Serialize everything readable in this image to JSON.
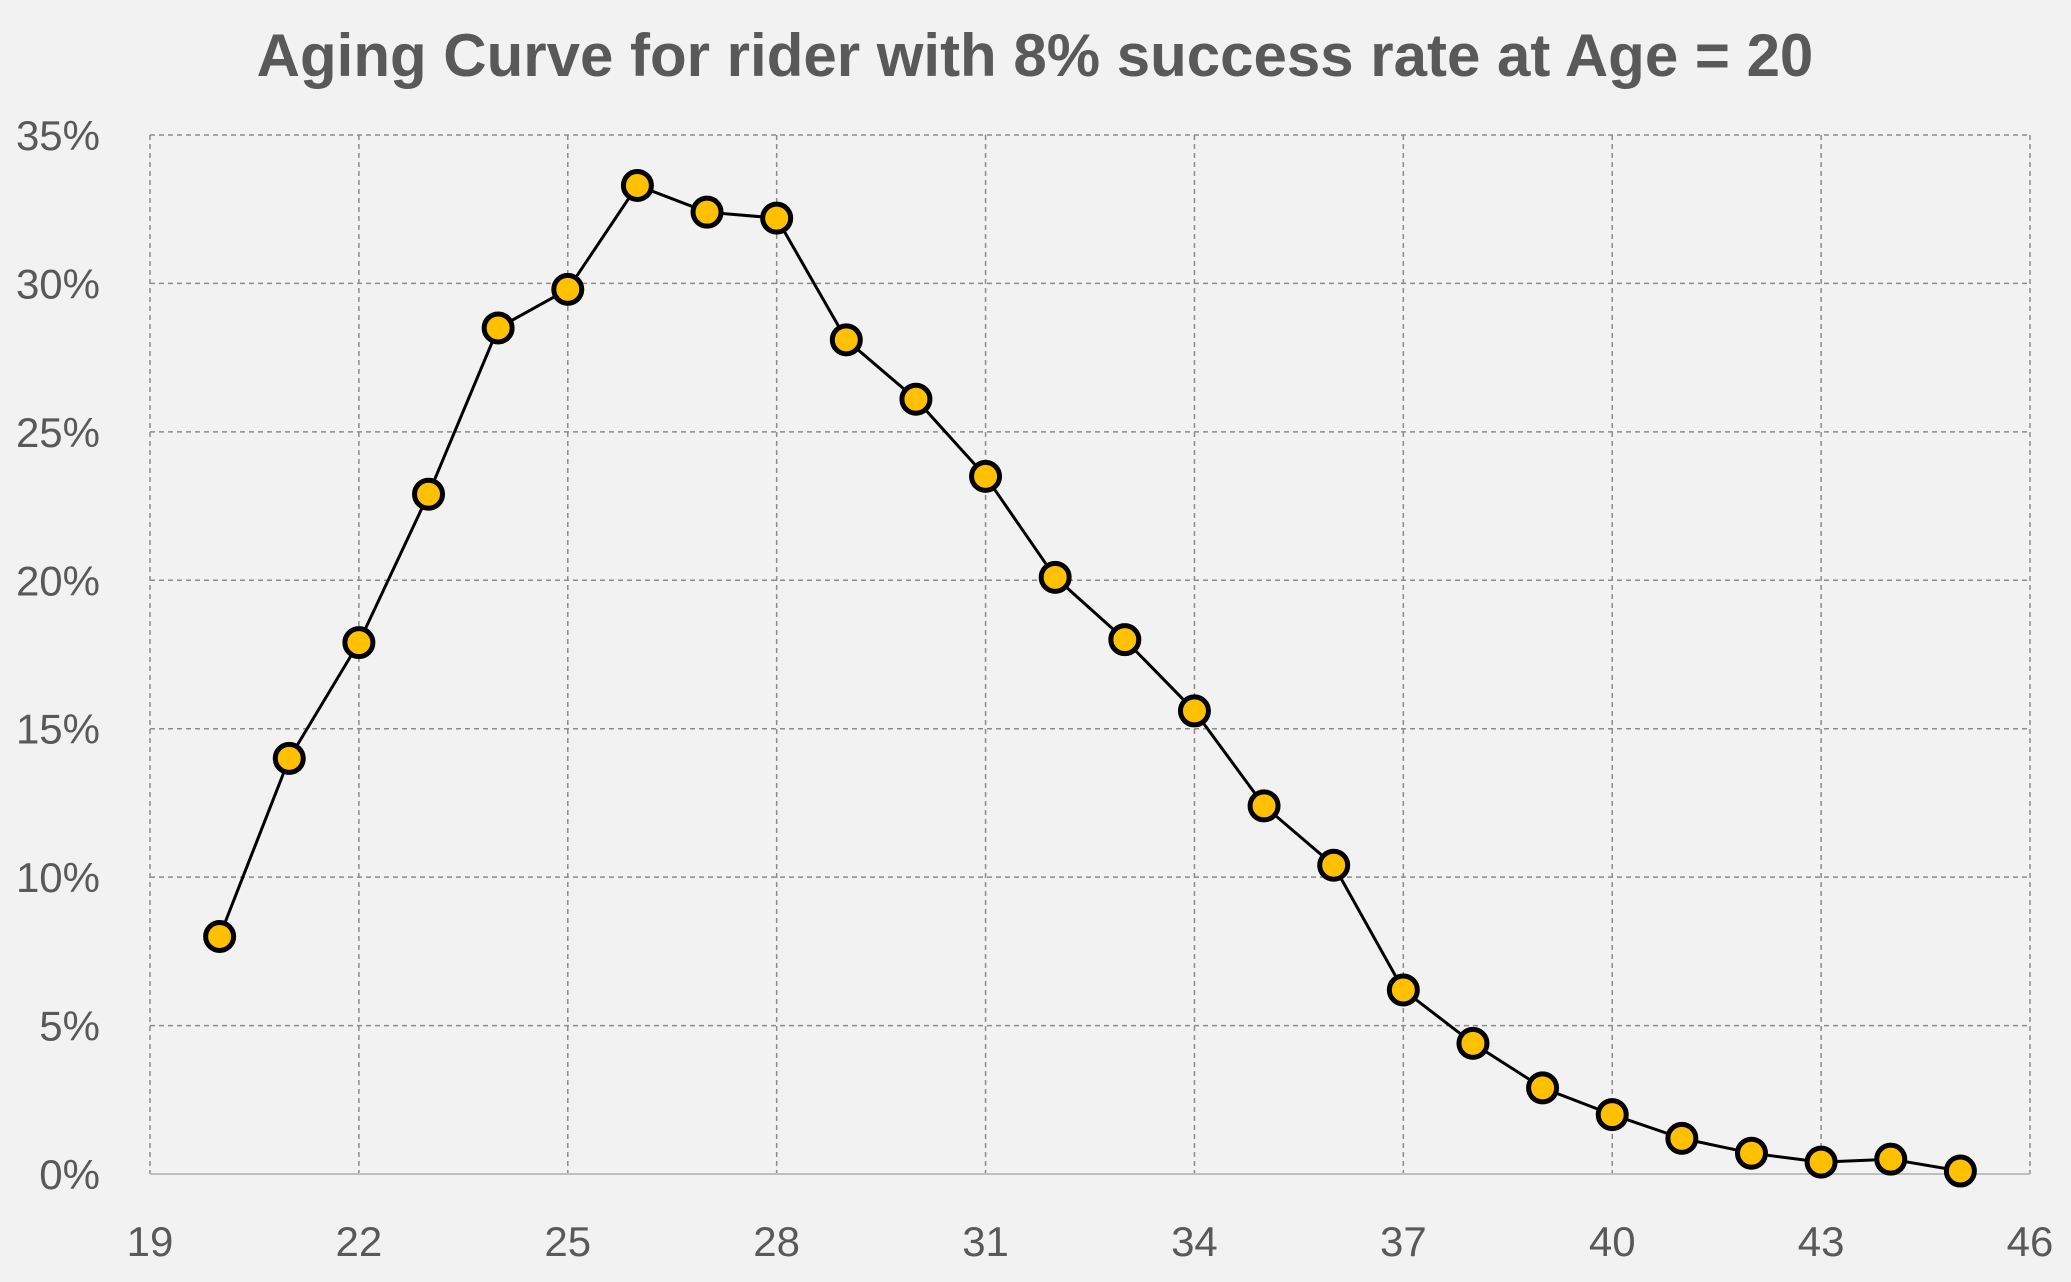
{
  "chart_data": {
    "type": "scatter",
    "title": "Aging Curve for rider with 8% success rate at Age = 20",
    "xlabel": "",
    "ylabel": "",
    "xlim": [
      19,
      46
    ],
    "ylim": [
      0,
      35
    ],
    "x_ticks": [
      19,
      22,
      25,
      28,
      31,
      34,
      37,
      40,
      43,
      46
    ],
    "y_ticks": [
      0,
      5,
      10,
      15,
      20,
      25,
      30,
      35
    ],
    "y_tick_labels": [
      "0%",
      "5%",
      "10%",
      "15%",
      "20%",
      "25%",
      "30%",
      "35%"
    ],
    "grid": true,
    "legend": "none",
    "series": [
      {
        "x": [
          20,
          21,
          22,
          23,
          24,
          25,
          26,
          27,
          28,
          29,
          30,
          31,
          32,
          33,
          34,
          35,
          36,
          37,
          38,
          39,
          40,
          41,
          42,
          43,
          44,
          45
        ],
        "y": [
          8.0,
          14.0,
          17.9,
          22.9,
          28.5,
          29.8,
          33.3,
          32.4,
          32.2,
          28.1,
          26.1,
          23.5,
          20.1,
          18.0,
          15.6,
          12.4,
          10.4,
          6.2,
          4.4,
          2.9,
          2.0,
          1.2,
          0.7,
          0.4,
          0.5,
          0.1
        ],
        "marker_color": "#ffc000",
        "marker_edge_color": "#000000",
        "line_color": "#000000"
      }
    ]
  },
  "colors": {
    "background": "#f2f2f2",
    "text": "#595959",
    "grid": "#8c8c8c"
  }
}
